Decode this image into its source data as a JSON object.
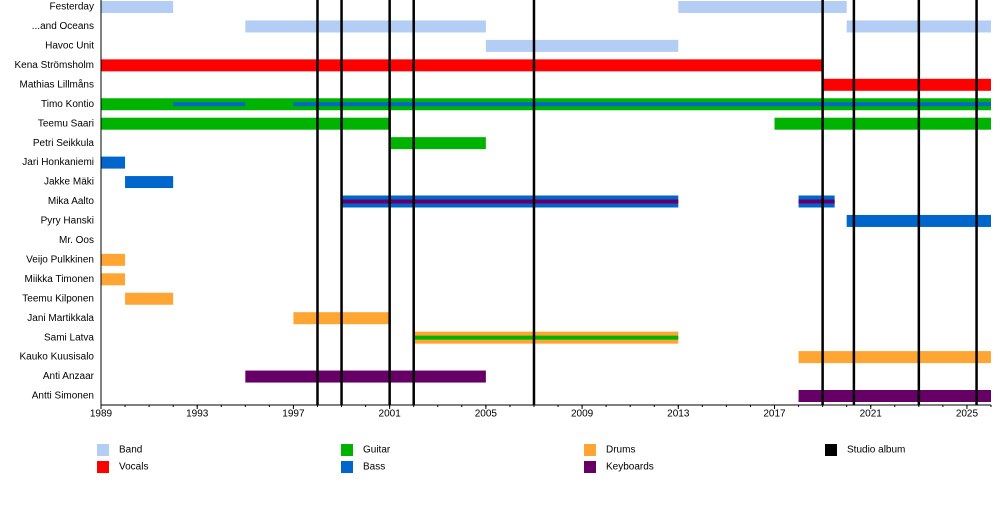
{
  "chart_data": {
    "type": "timeline",
    "xlim": [
      1989,
      2026
    ],
    "xticks": [
      1989,
      1993,
      1997,
      2001,
      2005,
      2009,
      2013,
      2017,
      2021,
      2025
    ],
    "roles": [
      {
        "name": "Band",
        "color": "#b3cdf5"
      },
      {
        "name": "Vocals",
        "color": "#ff0000"
      },
      {
        "name": "Guitar",
        "color": "#00b300"
      },
      {
        "name": "Bass",
        "color": "#0066cc"
      },
      {
        "name": "Drums",
        "color": "#ffa533"
      },
      {
        "name": "Keyboards",
        "color": "#660066"
      },
      {
        "name": "Studio album",
        "color": "#000000"
      }
    ],
    "albums": [
      1998,
      1999,
      2001,
      2002,
      2007,
      2019,
      2020.3,
      2023,
      2025.4
    ],
    "rows": [
      {
        "label": "Festerday",
        "segments": [
          {
            "role": 0,
            "start": 1989,
            "end": 1992
          },
          {
            "role": 0,
            "start": 2013,
            "end": 2020
          }
        ]
      },
      {
        "label": "...and Oceans",
        "segments": [
          {
            "role": 0,
            "start": 1995,
            "end": 2005
          },
          {
            "role": 0,
            "start": 2020,
            "end": 2026
          }
        ]
      },
      {
        "label": "Havoc Unit",
        "segments": [
          {
            "role": 0,
            "start": 2005,
            "end": 2013
          }
        ]
      },
      {
        "label": "Kena Strömsholm",
        "segments": [
          {
            "role": 1,
            "start": 1989,
            "end": 2019
          }
        ]
      },
      {
        "label": "Mathias Lillmåns",
        "segments": [
          {
            "role": 1,
            "start": 2019,
            "end": 2026
          }
        ]
      },
      {
        "label": "Timo Kontio",
        "segments": [
          {
            "role": 2,
            "start": 1989,
            "end": 2026
          },
          {
            "role": 3,
            "start": 1992,
            "end": 1995,
            "inner": true
          },
          {
            "role": 3,
            "start": 1997,
            "end": 2026,
            "inner": true
          }
        ]
      },
      {
        "label": "Teemu Saari",
        "segments": [
          {
            "role": 2,
            "start": 1989,
            "end": 2001
          },
          {
            "role": 2,
            "start": 2017,
            "end": 2026
          }
        ]
      },
      {
        "label": "Petri Seikkula",
        "segments": [
          {
            "role": 2,
            "start": 2001,
            "end": 2005
          }
        ]
      },
      {
        "label": "Jari Honkaniemi",
        "segments": [
          {
            "role": 3,
            "start": 1989,
            "end": 1990
          }
        ]
      },
      {
        "label": "Jakke Mäki",
        "segments": [
          {
            "role": 3,
            "start": 1990,
            "end": 1992
          }
        ]
      },
      {
        "label": "Mika Aalto",
        "segments": [
          {
            "role": 3,
            "start": 1999,
            "end": 2013
          },
          {
            "role": 5,
            "start": 1999,
            "end": 2013,
            "inner": true
          },
          {
            "role": 3,
            "start": 2018,
            "end": 2019.5
          },
          {
            "role": 5,
            "start": 2018,
            "end": 2019.5,
            "inner": true
          }
        ]
      },
      {
        "label": "Pyry Hanski",
        "segments": [
          {
            "role": 3,
            "start": 2020,
            "end": 2026
          }
        ]
      },
      {
        "label": "Mr. Oos",
        "segments": []
      },
      {
        "label": "Veijo Pulkkinen",
        "segments": [
          {
            "role": 4,
            "start": 1989,
            "end": 1990
          }
        ]
      },
      {
        "label": "Miikka Timonen",
        "segments": [
          {
            "role": 4,
            "start": 1989,
            "end": 1990
          }
        ]
      },
      {
        "label": "Teemu Kilponen",
        "segments": [
          {
            "role": 4,
            "start": 1990,
            "end": 1992
          }
        ]
      },
      {
        "label": "Jani Martikkala",
        "segments": [
          {
            "role": 4,
            "start": 1997,
            "end": 2001
          }
        ]
      },
      {
        "label": "Sami Latva",
        "segments": [
          {
            "role": 4,
            "start": 2002,
            "end": 2013
          },
          {
            "role": 2,
            "start": 2002,
            "end": 2013,
            "inner": true
          }
        ]
      },
      {
        "label": "Kauko Kuusisalo",
        "segments": [
          {
            "role": 4,
            "start": 2018,
            "end": 2026
          }
        ]
      },
      {
        "label": "Anti Anzaar",
        "segments": [
          {
            "role": 5,
            "start": 1995,
            "end": 2005
          }
        ]
      },
      {
        "label": "Antti Simonen",
        "segments": [
          {
            "role": 5,
            "start": 2018,
            "end": 2026
          }
        ]
      }
    ]
  }
}
